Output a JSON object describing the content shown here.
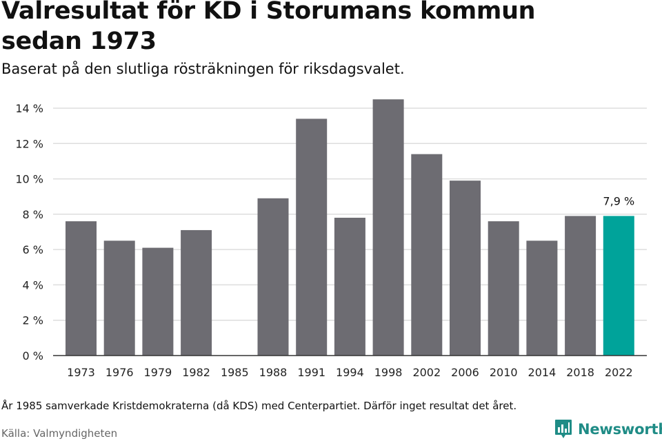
{
  "title": "Valresultat för KD i Storumans kommun sedan 1973",
  "subtitle": "Baserat på den slutliga rösträkningen för riksdagsvalet.",
  "footnote": "År 1985 samverkade Kristdemokraterna (då KDS) med Centerpartiet. Därför inget resultat det året.",
  "source": "Källa: Valmyndigheten",
  "brand": "Newsworthy",
  "colors": {
    "bar": "#6d6c72",
    "highlight": "#00a39a",
    "grid": "#dddddd",
    "axis": "#333333",
    "brand": "#1f8c86"
  },
  "chart_data": {
    "type": "bar",
    "categories": [
      "1973",
      "1976",
      "1979",
      "1982",
      "1985",
      "1988",
      "1991",
      "1994",
      "1998",
      "2002",
      "2006",
      "2010",
      "2014",
      "2018",
      "2022"
    ],
    "values": [
      7.6,
      6.5,
      6.1,
      7.1,
      null,
      8.9,
      13.4,
      7.8,
      14.5,
      11.4,
      9.9,
      7.6,
      6.5,
      7.9,
      7.9
    ],
    "ylim": [
      0,
      14
    ],
    "yticks": [
      0,
      2,
      4,
      6,
      8,
      10,
      12,
      14
    ],
    "ytick_labels": [
      "0 %",
      "2 %",
      "4 %",
      "6 %",
      "8 %",
      "10 %",
      "12 %",
      "14 %"
    ],
    "highlight_index": 14,
    "data_labels": [
      {
        "index": 14,
        "text": "7,9 %"
      }
    ],
    "grid": true
  }
}
